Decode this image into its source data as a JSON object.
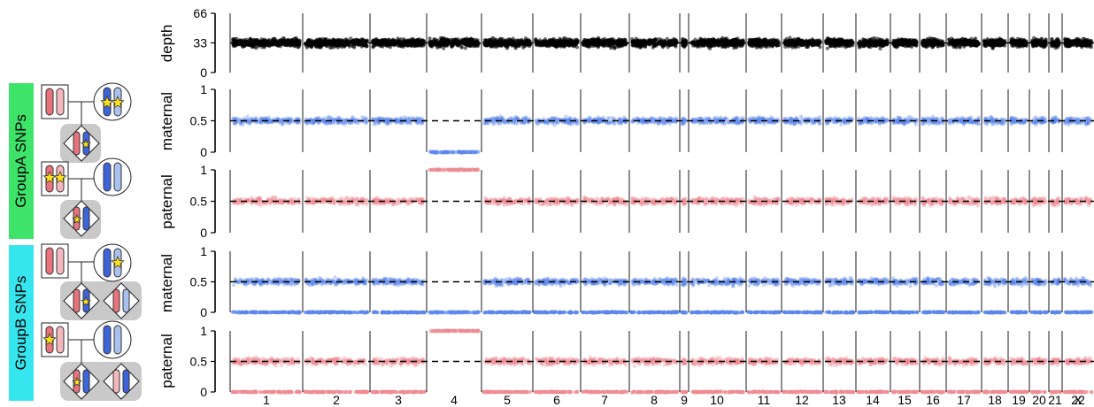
{
  "groups": {
    "a_label": "GroupA SNPs",
    "b_label": "GroupB SNPs"
  },
  "colors": {
    "depth": "#000000",
    "maternal": "#5b86ea",
    "paternal": "#ef8a93",
    "group_a": "#3ee36a",
    "group_b": "#36e6ee",
    "pink_dark": "#e8737c",
    "pink_light": "#f4b7bd",
    "blue_dark": "#3d64d8",
    "blue_light": "#a9c1ee",
    "star": "#ffe11a"
  },
  "icons": [
    "chromosome-pair-icon",
    "zygote-icon",
    "star-icon"
  ],
  "chart_data": [
    {
      "type": "scatter",
      "name": "depth-panel",
      "ylabel": "depth",
      "ylim": [
        0,
        66
      ],
      "yticks": [
        "66",
        "33",
        "0"
      ],
      "dashed_y": 33,
      "chromosomes": [
        {
          "label": "1",
          "value": 33,
          "present": true
        },
        {
          "label": "2",
          "value": 33,
          "present": true
        },
        {
          "label": "3",
          "value": 33,
          "present": true
        },
        {
          "label": "4",
          "value": 33,
          "present": true
        },
        {
          "label": "5",
          "value": 33,
          "present": true
        },
        {
          "label": "6",
          "value": 33,
          "present": true
        },
        {
          "label": "7",
          "value": 33,
          "present": true
        },
        {
          "label": "8",
          "value": 33,
          "present": true
        },
        {
          "label": "9",
          "value": 33,
          "present": true
        },
        {
          "label": "10",
          "value": 33,
          "present": true
        },
        {
          "label": "11",
          "value": 33,
          "present": true
        },
        {
          "label": "12",
          "value": 33,
          "present": true
        },
        {
          "label": "13",
          "value": 33,
          "present": true
        },
        {
          "label": "14",
          "value": 33,
          "present": true
        },
        {
          "label": "15",
          "value": 33,
          "present": true
        },
        {
          "label": "16",
          "value": 33,
          "present": true
        },
        {
          "label": "17",
          "value": 33,
          "present": true
        },
        {
          "label": "18",
          "value": 33,
          "present": true
        },
        {
          "label": "19",
          "value": 33,
          "present": true
        },
        {
          "label": "20",
          "value": 33,
          "present": true
        },
        {
          "label": "21",
          "value": 33,
          "present": true
        },
        {
          "label": "22",
          "value": 33,
          "present": true
        },
        {
          "label": "X",
          "value": 33,
          "present": true
        }
      ]
    },
    {
      "type": "scatter",
      "name": "groupA-maternal",
      "group": "GroupA SNPs",
      "ylabel": "maternal",
      "ylim": [
        0,
        1
      ],
      "yticks": [
        "1",
        "0.5",
        "0"
      ],
      "dashed_y": 0.5,
      "series_color": "maternal",
      "chromosomes": [
        {
          "label": "1",
          "value": 0.5
        },
        {
          "label": "2",
          "value": 0.5
        },
        {
          "label": "3",
          "value": 0.5
        },
        {
          "label": "4",
          "value": 0
        },
        {
          "label": "5",
          "value": 0.5
        },
        {
          "label": "6",
          "value": 0.5
        },
        {
          "label": "7",
          "value": 0.5
        },
        {
          "label": "8",
          "value": 0.5
        },
        {
          "label": "9",
          "value": 0.5
        },
        {
          "label": "10",
          "value": 0.5
        },
        {
          "label": "11",
          "value": 0.5
        },
        {
          "label": "12",
          "value": 0.5
        },
        {
          "label": "13",
          "value": 0.5
        },
        {
          "label": "14",
          "value": 0.5
        },
        {
          "label": "15",
          "value": 0.5
        },
        {
          "label": "16",
          "value": 0.5
        },
        {
          "label": "17",
          "value": 0.5
        },
        {
          "label": "18",
          "value": 0.5
        },
        {
          "label": "19",
          "value": 0.5
        },
        {
          "label": "20",
          "value": 0.5
        },
        {
          "label": "21",
          "value": 0.5
        },
        {
          "label": "22",
          "value": 0.5
        },
        {
          "label": "X",
          "value": 0.5
        }
      ]
    },
    {
      "type": "scatter",
      "name": "groupA-paternal",
      "group": "GroupA SNPs",
      "ylabel": "paternal",
      "ylim": [
        0,
        1
      ],
      "yticks": [
        "1",
        "0.5",
        "0"
      ],
      "dashed_y": 0.5,
      "series_color": "paternal",
      "chromosomes": [
        {
          "label": "1",
          "value": 0.5
        },
        {
          "label": "2",
          "value": 0.5
        },
        {
          "label": "3",
          "value": 0.5
        },
        {
          "label": "4",
          "value": 1
        },
        {
          "label": "5",
          "value": 0.5
        },
        {
          "label": "6",
          "value": 0.5
        },
        {
          "label": "7",
          "value": 0.5
        },
        {
          "label": "8",
          "value": 0.5
        },
        {
          "label": "9",
          "value": 0.5
        },
        {
          "label": "10",
          "value": 0.5
        },
        {
          "label": "11",
          "value": 0.5
        },
        {
          "label": "12",
          "value": 0.5
        },
        {
          "label": "13",
          "value": 0.5
        },
        {
          "label": "14",
          "value": 0.5
        },
        {
          "label": "15",
          "value": 0.5
        },
        {
          "label": "16",
          "value": 0.5
        },
        {
          "label": "17",
          "value": 0.5
        },
        {
          "label": "18",
          "value": 0.5
        },
        {
          "label": "19",
          "value": 0.5
        },
        {
          "label": "20",
          "value": 0.5
        },
        {
          "label": "21",
          "value": 0.5
        },
        {
          "label": "22",
          "value": 0.5
        },
        {
          "label": "X",
          "value": 0.5
        }
      ]
    },
    {
      "type": "scatter",
      "name": "groupB-maternal",
      "group": "GroupB SNPs",
      "ylabel": "maternal",
      "ylim": [
        0,
        1
      ],
      "yticks": [
        "1",
        "0.5",
        "0"
      ],
      "dashed_y": 0.5,
      "series_color": "maternal",
      "chromosomes": [
        {
          "label": "1",
          "value": 0.5,
          "floor": true
        },
        {
          "label": "2",
          "value": 0.5,
          "floor": true
        },
        {
          "label": "3",
          "value": 0.5,
          "floor": true
        },
        {
          "label": "4",
          "value": 0
        },
        {
          "label": "5",
          "value": 0.5,
          "floor": true
        },
        {
          "label": "6",
          "value": 0.5,
          "floor": true
        },
        {
          "label": "7",
          "value": 0.5,
          "floor": true
        },
        {
          "label": "8",
          "value": 0.5,
          "floor": true
        },
        {
          "label": "9",
          "value": 0.5,
          "floor": true
        },
        {
          "label": "10",
          "value": 0.5,
          "floor": true
        },
        {
          "label": "11",
          "value": 0.5,
          "floor": true
        },
        {
          "label": "12",
          "value": 0.5,
          "floor": true
        },
        {
          "label": "13",
          "value": 0.5,
          "floor": true
        },
        {
          "label": "14",
          "value": 0.5,
          "floor": true
        },
        {
          "label": "15",
          "value": 0.5,
          "floor": true
        },
        {
          "label": "16",
          "value": 0.5,
          "floor": true
        },
        {
          "label": "17",
          "value": 0.5,
          "floor": true
        },
        {
          "label": "18",
          "value": 0.5,
          "floor": true
        },
        {
          "label": "19",
          "value": 0.5,
          "floor": true
        },
        {
          "label": "20",
          "value": 0.5,
          "floor": true
        },
        {
          "label": "21",
          "value": 0.5,
          "floor": true
        },
        {
          "label": "22",
          "value": 0.5,
          "floor": true
        },
        {
          "label": "X",
          "value": 0.5,
          "floor": true
        }
      ]
    },
    {
      "type": "scatter",
      "name": "groupB-paternal",
      "group": "GroupB SNPs",
      "ylabel": "paternal",
      "ylim": [
        0,
        1
      ],
      "yticks": [
        "1",
        "0.5",
        "0"
      ],
      "dashed_y": 0.5,
      "series_color": "paternal",
      "chromosomes": [
        {
          "label": "1",
          "value": 0.5,
          "floor": true
        },
        {
          "label": "2",
          "value": 0.5,
          "floor": true
        },
        {
          "label": "3",
          "value": 0.5,
          "floor": true
        },
        {
          "label": "4",
          "value": 1
        },
        {
          "label": "5",
          "value": 0.5,
          "floor": true
        },
        {
          "label": "6",
          "value": 0.5,
          "floor": true
        },
        {
          "label": "7",
          "value": 0.5,
          "floor": true
        },
        {
          "label": "8",
          "value": 0.5,
          "floor": true
        },
        {
          "label": "9",
          "value": 0.5,
          "floor": true
        },
        {
          "label": "10",
          "value": 0.5,
          "floor": true
        },
        {
          "label": "11",
          "value": 0.5,
          "floor": true
        },
        {
          "label": "12",
          "value": 0.5,
          "floor": true
        },
        {
          "label": "13",
          "value": 0.5,
          "floor": true
        },
        {
          "label": "14",
          "value": 0.5,
          "floor": true
        },
        {
          "label": "15",
          "value": 0.5,
          "floor": true
        },
        {
          "label": "16",
          "value": 0.5,
          "floor": true
        },
        {
          "label": "17",
          "value": 0.5,
          "floor": true
        },
        {
          "label": "18",
          "value": 0.5,
          "floor": true
        },
        {
          "label": "19",
          "value": 0.5,
          "floor": true
        },
        {
          "label": "20",
          "value": 0.5,
          "floor": true
        },
        {
          "label": "21",
          "value": 0.5,
          "floor": true
        },
        {
          "label": "22",
          "value": 0.5,
          "floor": true
        },
        {
          "label": "X",
          "value": null
        }
      ]
    }
  ],
  "x_axis": {
    "labels": [
      "1",
      "2",
      "3",
      "4",
      "5",
      "6",
      "7",
      "8",
      "9",
      "10",
      "11",
      "12",
      "13",
      "14",
      "15",
      "16",
      "17",
      "18",
      "19",
      "20",
      "21",
      "22",
      "X"
    ]
  }
}
